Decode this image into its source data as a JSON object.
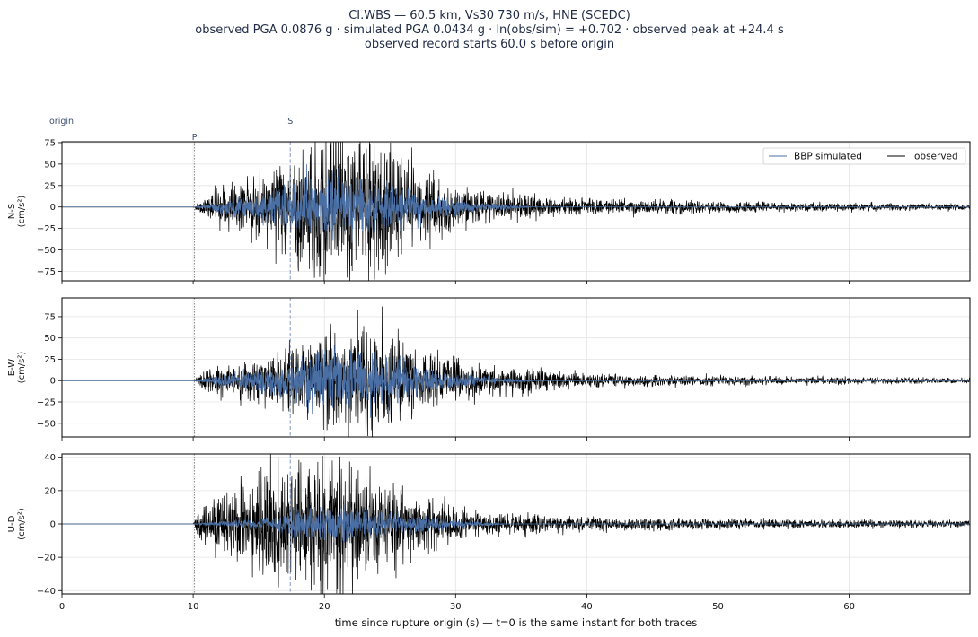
{
  "header": {
    "title_line1": "CI.WBS  —  60.5 km, Vs30 730 m/s, HNE (SCEDC)",
    "title_line2": "observed PGA 0.0876 g   ·   simulated PGA 0.0434 g   ·   ln(obs/sim) = +0.702   ·   observed peak at +24.4 s",
    "title_line3": "observed record starts 60.0 s before origin"
  },
  "colors": {
    "observed": "#000000",
    "simulated": "#4a6fa5",
    "p_marker": "#888888",
    "s_marker": "#7f97c4",
    "marker_text": "#3d4f6e",
    "grid": "#e4e4e4"
  },
  "chart_data": [
    {
      "type": "line",
      "component": "N-S",
      "ylabel": "N-S\n(cm/s²)",
      "xlim": [
        0,
        69.2
      ],
      "ylim": [
        -86,
        76
      ],
      "yticks": [
        -75,
        -50,
        -25,
        0,
        25,
        50,
        75
      ],
      "ytick_labels": [
        "−75",
        "−50",
        "−25",
        "0",
        "25",
        "50",
        "75"
      ],
      "grid": true,
      "legend": {
        "placement": "top-right",
        "entries": [
          "BBP simulated",
          "observed"
        ]
      },
      "annotations": [
        {
          "text": "origin",
          "x": 0
        },
        {
          "text": "P",
          "x": 10.1
        },
        {
          "text": "S",
          "x": 17.4
        }
      ],
      "peaks": [
        {
          "t": 18.0,
          "v": -70
        },
        {
          "t": 19.7,
          "v": -69
        },
        {
          "t": 20.1,
          "v": -78
        },
        {
          "t": 21.2,
          "v": 50
        },
        {
          "t": 22.4,
          "v": -62
        },
        {
          "t": 23.2,
          "v": 68
        },
        {
          "t": 24.6,
          "v": 62
        },
        {
          "t": 24.8,
          "v": -69
        },
        {
          "t": 25.3,
          "v": 56
        }
      ],
      "envelope": [
        {
          "t": 10.0,
          "a": 0
        },
        {
          "t": 10.5,
          "a": 4
        },
        {
          "t": 12.0,
          "a": 12
        },
        {
          "t": 14.0,
          "a": 15
        },
        {
          "t": 16.0,
          "a": 20
        },
        {
          "t": 18.0,
          "a": 36
        },
        {
          "t": 21.0,
          "a": 40
        },
        {
          "t": 25.0,
          "a": 33
        },
        {
          "t": 28.0,
          "a": 18
        },
        {
          "t": 32.0,
          "a": 9
        },
        {
          "t": 40.0,
          "a": 4.5
        },
        {
          "t": 55.0,
          "a": 2.5
        },
        {
          "t": 69.2,
          "a": 1.6
        }
      ],
      "sim_envelope": [
        {
          "t": 10.0,
          "a": 0
        },
        {
          "t": 11.0,
          "a": 2
        },
        {
          "t": 13.0,
          "a": 6
        },
        {
          "t": 16.0,
          "a": 10
        },
        {
          "t": 18.0,
          "a": 20
        },
        {
          "t": 21.0,
          "a": 22
        },
        {
          "t": 25.0,
          "a": 15
        },
        {
          "t": 28.0,
          "a": 8
        },
        {
          "t": 32.0,
          "a": 3
        },
        {
          "t": 36.0,
          "a": 0
        }
      ]
    },
    {
      "type": "line",
      "component": "E-W",
      "ylabel": "E-W\n(cm/s²)",
      "xlim": [
        0,
        69.2
      ],
      "ylim": [
        -66,
        97
      ],
      "yticks": [
        -50,
        -25,
        0,
        25,
        50,
        75
      ],
      "ytick_labels": [
        "−50",
        "−25",
        "0",
        "25",
        "50",
        "75"
      ],
      "grid": true,
      "annotations": [],
      "peaks": [
        {
          "t": 20.2,
          "v": -58
        },
        {
          "t": 20.5,
          "v": 52
        },
        {
          "t": 23.0,
          "v": 64
        },
        {
          "t": 23.6,
          "v": -58
        },
        {
          "t": 24.4,
          "v": 87
        },
        {
          "t": 24.9,
          "v": -50
        },
        {
          "t": 26.0,
          "v": 45
        }
      ],
      "envelope": [
        {
          "t": 10.0,
          "a": 0
        },
        {
          "t": 10.5,
          "a": 4
        },
        {
          "t": 12.0,
          "a": 9
        },
        {
          "t": 14.0,
          "a": 12
        },
        {
          "t": 16.0,
          "a": 14
        },
        {
          "t": 18.0,
          "a": 22
        },
        {
          "t": 21.0,
          "a": 26
        },
        {
          "t": 24.0,
          "a": 30
        },
        {
          "t": 27.0,
          "a": 18
        },
        {
          "t": 32.0,
          "a": 9
        },
        {
          "t": 40.0,
          "a": 4
        },
        {
          "t": 55.0,
          "a": 2.2
        },
        {
          "t": 69.2,
          "a": 1.5
        }
      ],
      "sim_envelope": [
        {
          "t": 10.0,
          "a": 0
        },
        {
          "t": 11.0,
          "a": 2
        },
        {
          "t": 13.0,
          "a": 5
        },
        {
          "t": 16.0,
          "a": 8
        },
        {
          "t": 18.0,
          "a": 16
        },
        {
          "t": 21.0,
          "a": 20
        },
        {
          "t": 24.0,
          "a": 18
        },
        {
          "t": 28.0,
          "a": 7
        },
        {
          "t": 32.0,
          "a": 3
        },
        {
          "t": 36.0,
          "a": 0
        }
      ]
    },
    {
      "type": "line",
      "component": "U-D",
      "ylabel": "U-D\n(cm/s²)",
      "xlim": [
        0,
        69.2
      ],
      "ylim": [
        -42,
        42
      ],
      "yticks": [
        -40,
        -20,
        0,
        20,
        40
      ],
      "ytick_labels": [
        "−40",
        "−20",
        "0",
        "20",
        "40"
      ],
      "xticks": [
        0,
        10,
        20,
        30,
        40,
        50,
        60
      ],
      "xlabel": "time since rupture origin (s)   —   t=0 is the same instant for both traces",
      "grid": true,
      "annotations": [],
      "peaks": [
        {
          "t": 16.5,
          "v": -38
        },
        {
          "t": 18.2,
          "v": 37
        },
        {
          "t": 19.0,
          "v": -40
        },
        {
          "t": 20.6,
          "v": 38
        },
        {
          "t": 21.0,
          "v": -39
        },
        {
          "t": 21.3,
          "v": 33
        },
        {
          "t": 22.5,
          "v": -34
        }
      ],
      "envelope": [
        {
          "t": 10.0,
          "a": 0
        },
        {
          "t": 10.5,
          "a": 5
        },
        {
          "t": 12.0,
          "a": 10
        },
        {
          "t": 14.0,
          "a": 13
        },
        {
          "t": 16.0,
          "a": 18
        },
        {
          "t": 18.0,
          "a": 20
        },
        {
          "t": 21.0,
          "a": 19
        },
        {
          "t": 24.0,
          "a": 14
        },
        {
          "t": 28.0,
          "a": 7
        },
        {
          "t": 32.0,
          "a": 3.5
        },
        {
          "t": 40.0,
          "a": 2
        },
        {
          "t": 55.0,
          "a": 1.3
        },
        {
          "t": 69.2,
          "a": 1.0
        }
      ],
      "sim_envelope": [
        {
          "t": 10.0,
          "a": 0
        },
        {
          "t": 12.0,
          "a": 1
        },
        {
          "t": 16.0,
          "a": 2
        },
        {
          "t": 18.0,
          "a": 5
        },
        {
          "t": 21.0,
          "a": 6
        },
        {
          "t": 25.0,
          "a": 4
        },
        {
          "t": 30.0,
          "a": 1.5
        },
        {
          "t": 34.0,
          "a": 0
        }
      ]
    }
  ]
}
